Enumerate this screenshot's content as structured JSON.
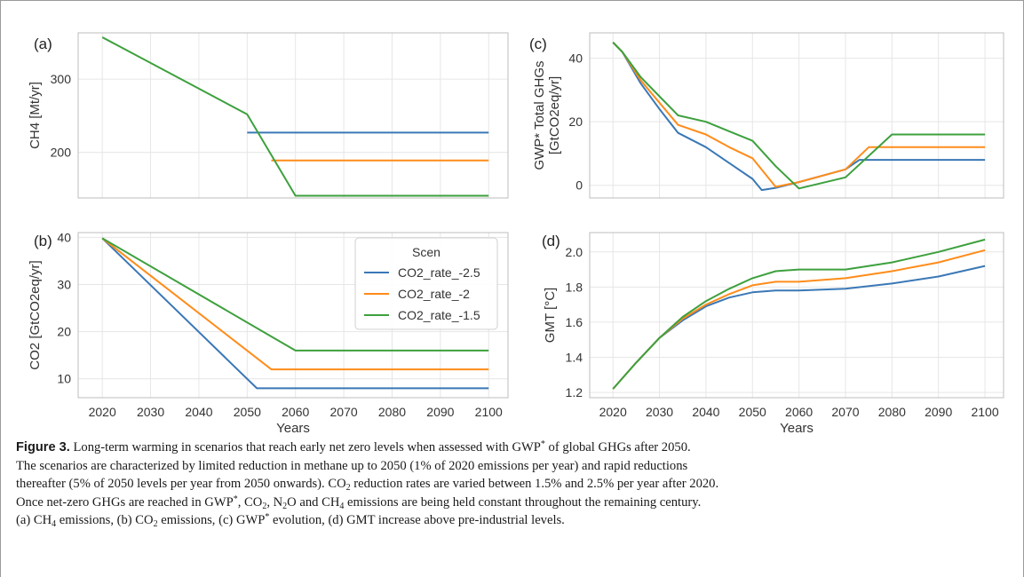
{
  "colors": {
    "series": [
      "#3a78b6",
      "#ff8c1a",
      "#3da03d"
    ],
    "grid": "#e6e6e6",
    "axis": "#bdbdbd",
    "text": "#333333"
  },
  "legend": {
    "title": "Scen",
    "entries": [
      "CO2_rate_-2.5",
      "CO2_rate_-2",
      "CO2_rate_-1.5"
    ]
  },
  "chart_data": [
    {
      "panel": "(a)",
      "type": "line",
      "ylabel": "CH4 [Mt/yr]",
      "xlabel": "",
      "xlim": [
        2015,
        2104
      ],
      "ylim": [
        138,
        363
      ],
      "yticks": [
        200,
        300
      ],
      "xticks": [],
      "series": [
        {
          "name": "CO2_rate_-2.5",
          "x": [
            2050,
            2100
          ],
          "y": [
            227,
            227
          ]
        },
        {
          "name": "CO2_rate_-2",
          "x": [
            2055,
            2100
          ],
          "y": [
            189,
            189
          ]
        },
        {
          "name": "CO2_rate_-1.5",
          "x": [
            2020,
            2050,
            2060,
            2100
          ],
          "y": [
            357,
            252,
            141,
            141
          ]
        }
      ]
    },
    {
      "panel": "(b)",
      "type": "line",
      "ylabel": "CO2 [GtCO2eq/yr]",
      "xlabel": "Years",
      "xlim": [
        2015,
        2104
      ],
      "ylim": [
        6,
        41
      ],
      "yticks": [
        10,
        20,
        30,
        40
      ],
      "xticks": [
        2020,
        2030,
        2040,
        2050,
        2060,
        2070,
        2080,
        2090,
        2100
      ],
      "series": [
        {
          "name": "CO2_rate_-2.5",
          "x": [
            2020,
            2052,
            2100
          ],
          "y": [
            39.8,
            8,
            8
          ]
        },
        {
          "name": "CO2_rate_-2",
          "x": [
            2020,
            2055,
            2100
          ],
          "y": [
            39.8,
            12,
            12
          ]
        },
        {
          "name": "CO2_rate_-1.5",
          "x": [
            2020,
            2060,
            2100
          ],
          "y": [
            39.8,
            16,
            16
          ]
        }
      ]
    },
    {
      "panel": "(c)",
      "type": "line",
      "ylabel": "GWP* Total GHGs [GtCO2eq/yr]",
      "xlabel": "",
      "xlim": [
        2015,
        2104
      ],
      "ylim": [
        -4,
        48
      ],
      "yticks": [
        0,
        20,
        40
      ],
      "xticks": [],
      "series": [
        {
          "name": "CO2_rate_-2.5",
          "x": [
            2020,
            2022,
            2026,
            2030,
            2034,
            2040,
            2045,
            2050,
            2052,
            2055,
            2060,
            2070,
            2073,
            2080,
            2100
          ],
          "y": [
            45,
            42,
            32,
            24,
            16.5,
            12,
            7,
            2,
            -1.5,
            -0.8,
            1,
            5,
            8,
            8,
            8
          ]
        },
        {
          "name": "CO2_rate_-2",
          "x": [
            2020,
            2022,
            2026,
            2030,
            2034,
            2040,
            2045,
            2050,
            2055,
            2060,
            2070,
            2075,
            2080,
            2100
          ],
          "y": [
            45,
            42,
            33,
            26,
            19,
            16,
            12,
            8.5,
            -0.5,
            1,
            5,
            12,
            12,
            12
          ]
        },
        {
          "name": "CO2_rate_-1.5",
          "x": [
            2020,
            2022,
            2026,
            2030,
            2034,
            2040,
            2045,
            2050,
            2055,
            2060,
            2070,
            2080,
            2100
          ],
          "y": [
            45,
            42,
            34,
            28,
            22,
            20,
            17,
            14,
            6,
            -1,
            2.5,
            16,
            16
          ]
        }
      ]
    },
    {
      "panel": "(d)",
      "type": "line",
      "ylabel": "GMT  [°C]",
      "xlabel": "Years",
      "xlim": [
        2015,
        2104
      ],
      "ylim": [
        1.17,
        2.11
      ],
      "yticks": [
        1.2,
        1.4,
        1.6,
        1.8,
        2.0
      ],
      "xticks": [
        2020,
        2030,
        2040,
        2050,
        2060,
        2070,
        2080,
        2090,
        2100
      ],
      "series": [
        {
          "name": "CO2_rate_-2.5",
          "x": [
            2020,
            2025,
            2030,
            2035,
            2040,
            2045,
            2050,
            2055,
            2060,
            2070,
            2080,
            2090,
            2100
          ],
          "y": [
            1.22,
            1.37,
            1.51,
            1.61,
            1.69,
            1.74,
            1.77,
            1.78,
            1.78,
            1.79,
            1.82,
            1.86,
            1.92
          ]
        },
        {
          "name": "CO2_rate_-2",
          "x": [
            2020,
            2025,
            2030,
            2035,
            2040,
            2045,
            2050,
            2055,
            2060,
            2070,
            2080,
            2090,
            2100
          ],
          "y": [
            1.22,
            1.37,
            1.51,
            1.62,
            1.7,
            1.76,
            1.81,
            1.83,
            1.83,
            1.85,
            1.89,
            1.94,
            2.01
          ]
        },
        {
          "name": "CO2_rate_-1.5",
          "x": [
            2020,
            2025,
            2030,
            2035,
            2040,
            2045,
            2050,
            2055,
            2060,
            2070,
            2080,
            2090,
            2100
          ],
          "y": [
            1.22,
            1.37,
            1.51,
            1.63,
            1.72,
            1.79,
            1.85,
            1.89,
            1.9,
            1.9,
            1.94,
            2.0,
            2.07
          ]
        }
      ]
    }
  ],
  "caption": {
    "label": "Figure 3.",
    "line1_text": " Long-term warming in scenarios that reach early net zero levels when assessed with GWP",
    "line1_sup": "*",
    "line1_tail": " of global GHGs after 2050.",
    "line2": "The scenarios are characterized by limited reduction in methane up to 2050 (1% of 2020 emissions per year) and rapid reductions",
    "line3_a": "thereafter (5% of 2050 levels per year from 2050 onwards). CO",
    "line3_sub": "2",
    "line3_b": " reduction rates are varied between 1.5% and 2.5% per year after 2020.",
    "line4_a": "Once net-zero GHGs are reached in GWP",
    "line4_sup": "*",
    "line4_b": ", CO",
    "line4_sub1": "2",
    "line4_c": ", N",
    "line4_sub2": "2",
    "line4_d": "O and CH",
    "line4_sub3": "4",
    "line4_e": " emissions are being held constant throughout the remaining century.",
    "line5_a": "(a) CH",
    "line5_sub1": "4",
    "line5_b": " emissions, (b) CO",
    "line5_sub2": "2",
    "line5_c": " emissions, (c) GWP",
    "line5_sup": "*",
    "line5_d": " evolution, (d) GMT increase above pre-industrial levels."
  }
}
